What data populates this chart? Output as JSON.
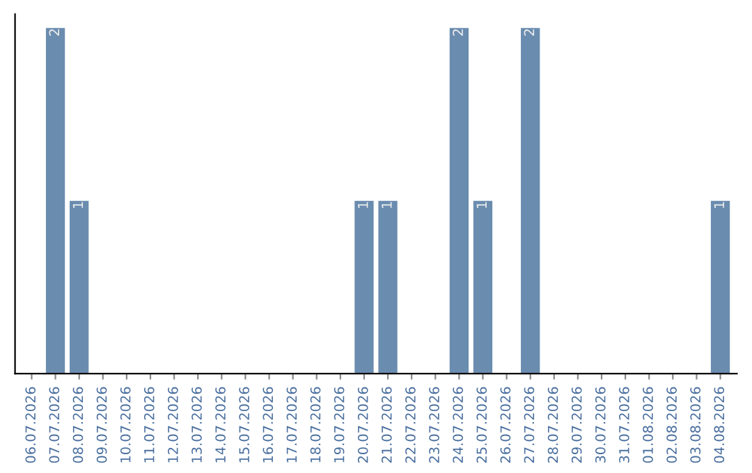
{
  "chart_data": {
    "type": "bar",
    "categories": [
      "06.07.2026",
      "07.07.2026",
      "08.07.2026",
      "09.07.2026",
      "10.07.2026",
      "11.07.2026",
      "12.07.2026",
      "13.07.2026",
      "14.07.2026",
      "15.07.2026",
      "16.07.2026",
      "17.07.2026",
      "18.07.2026",
      "19.07.2026",
      "20.07.2026",
      "21.07.2026",
      "22.07.2026",
      "23.07.2026",
      "24.07.2026",
      "25.07.2026",
      "26.07.2026",
      "27.07.2026",
      "28.07.2026",
      "29.07.2026",
      "30.07.2026",
      "31.07.2026",
      "01.08.2026",
      "02.08.2026",
      "03.08.2026",
      "04.08.2026"
    ],
    "values": [
      0,
      2,
      1,
      0,
      0,
      0,
      0,
      0,
      0,
      0,
      0,
      0,
      0,
      0,
      1,
      1,
      0,
      0,
      2,
      1,
      0,
      2,
      0,
      0,
      0,
      0,
      0,
      0,
      0,
      1
    ],
    "color": "#6a8caf",
    "value_labels": [
      null,
      "2",
      "1",
      null,
      null,
      null,
      null,
      null,
      null,
      null,
      null,
      null,
      null,
      null,
      "1",
      "1",
      null,
      null,
      "2",
      "1",
      null,
      "2",
      null,
      null,
      null,
      null,
      null,
      null,
      null,
      "1"
    ],
    "grid": false,
    "legend": false
  }
}
